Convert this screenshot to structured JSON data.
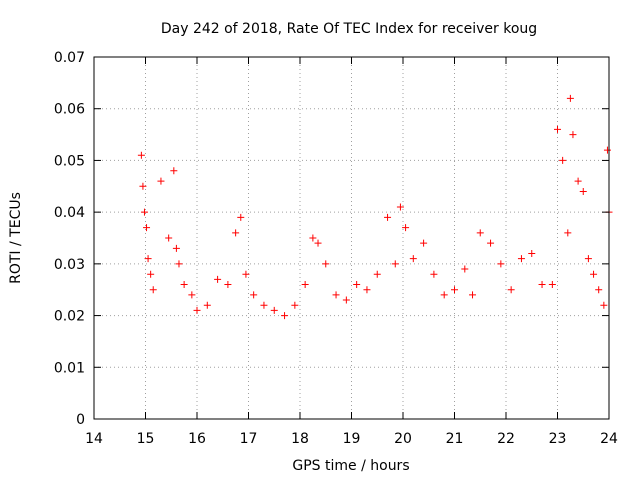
{
  "chart_data": {
    "type": "scatter",
    "title": "Day 242 of 2018, Rate Of TEC Index for receiver koug",
    "xlabel": "GPS time / hours",
    "ylabel": "ROTI / TECUs",
    "xlim": [
      14,
      24
    ],
    "ylim": [
      0,
      0.07
    ],
    "xticks": [
      14,
      15,
      16,
      17,
      18,
      19,
      20,
      21,
      22,
      23,
      24
    ],
    "yticks": [
      0,
      0.01,
      0.02,
      0.03,
      0.04,
      0.05,
      0.06,
      0.07
    ],
    "xtick_labels": [
      "14",
      "15",
      "16",
      "17",
      "18",
      "19",
      "20",
      "21",
      "22",
      "23",
      "24"
    ],
    "ytick_labels": [
      "0",
      "0.01",
      "0.02",
      "0.03",
      "0.04",
      "0.05",
      "0.06",
      "0.07"
    ],
    "grid": true,
    "marker": "+",
    "color": "#ff0000",
    "series": [
      {
        "name": "ROTI",
        "x": [
          14.92,
          14.95,
          14.98,
          15.02,
          15.05,
          15.1,
          15.15,
          15.3,
          15.45,
          15.55,
          15.6,
          15.65,
          15.75,
          15.9,
          16.0,
          16.2,
          16.4,
          16.6,
          16.75,
          16.85,
          16.95,
          17.1,
          17.3,
          17.5,
          17.7,
          17.9,
          18.1,
          18.25,
          18.35,
          18.5,
          18.7,
          18.9,
          19.1,
          19.3,
          19.5,
          19.7,
          19.85,
          19.95,
          20.05,
          20.2,
          20.4,
          20.6,
          20.8,
          21.0,
          21.2,
          21.35,
          21.5,
          21.7,
          21.9,
          22.1,
          22.3,
          22.5,
          22.7,
          22.9,
          23.0,
          23.1,
          23.2,
          23.25,
          23.3,
          23.4,
          23.5,
          23.6,
          23.7,
          23.8,
          23.9,
          23.97,
          24.0
        ],
        "y": [
          0.051,
          0.045,
          0.04,
          0.037,
          0.031,
          0.028,
          0.025,
          0.046,
          0.035,
          0.048,
          0.033,
          0.03,
          0.026,
          0.024,
          0.021,
          0.022,
          0.027,
          0.026,
          0.036,
          0.039,
          0.028,
          0.024,
          0.022,
          0.021,
          0.02,
          0.022,
          0.026,
          0.035,
          0.034,
          0.03,
          0.024,
          0.023,
          0.026,
          0.025,
          0.028,
          0.039,
          0.03,
          0.041,
          0.037,
          0.031,
          0.034,
          0.028,
          0.024,
          0.025,
          0.029,
          0.024,
          0.036,
          0.034,
          0.03,
          0.025,
          0.031,
          0.032,
          0.026,
          0.026,
          0.056,
          0.05,
          0.036,
          0.062,
          0.055,
          0.046,
          0.044,
          0.031,
          0.028,
          0.025,
          0.022,
          0.052,
          0.04
        ]
      }
    ]
  }
}
